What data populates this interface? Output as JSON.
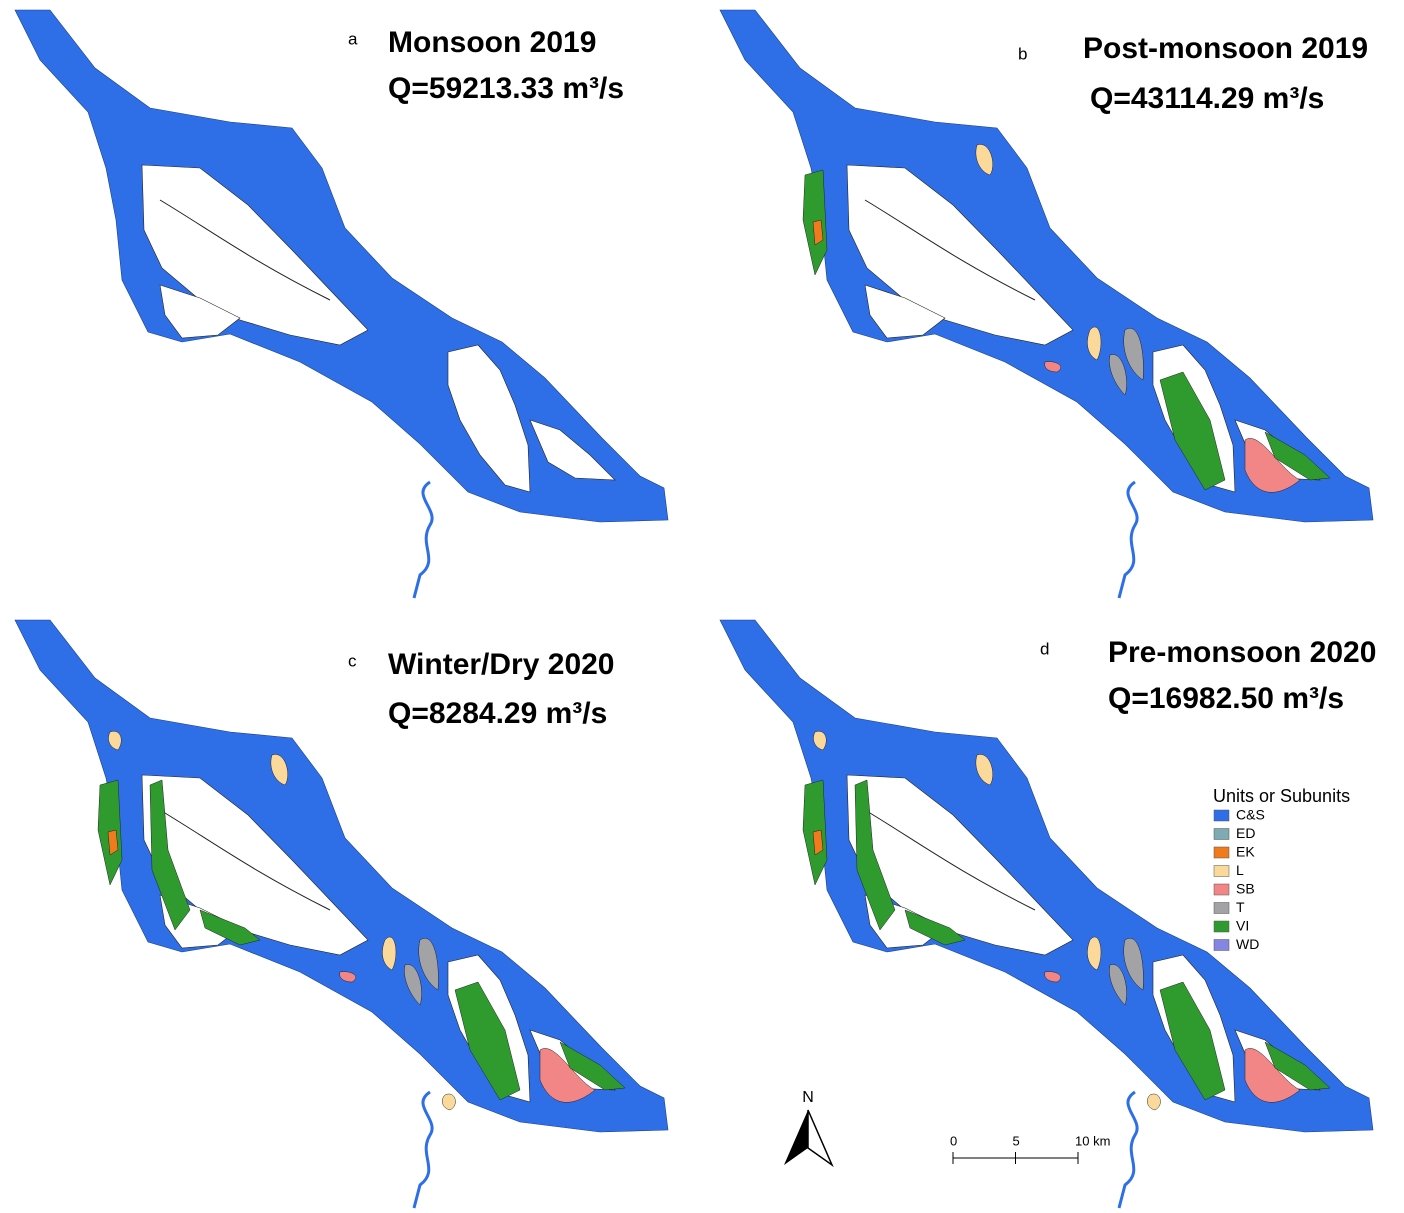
{
  "panels": [
    {
      "letter": "a",
      "title": "Monsoon 2019",
      "discharge": "Q=59213.33  m³/s"
    },
    {
      "letter": "b",
      "title": "Post-monsoon 2019",
      "discharge": "Q=43114.29   m³/s"
    },
    {
      "letter": "c",
      "title": "Winter/Dry 2020",
      "discharge": "Q=8284.29 m³/s"
    },
    {
      "letter": "d",
      "title": "Pre-monsoon 2020",
      "discharge": "Q=16982.50 m³/s"
    }
  ],
  "legend": {
    "title": "Units  or Subunits",
    "items": [
      {
        "name": "C&S",
        "color": "#2e6fe8"
      },
      {
        "name": "ED",
        "color": "#7eaab3"
      },
      {
        "name": "EK",
        "color": "#f07b1c"
      },
      {
        "name": "L",
        "color": "#fbd99b"
      },
      {
        "name": "SB",
        "color": "#f28585"
      },
      {
        "name": "T",
        "color": "#a3a3a6"
      },
      {
        "name": "VI",
        "color": "#2f9b2f"
      },
      {
        "name": "WD",
        "color": "#8585e3"
      }
    ]
  },
  "north_arrow": {
    "label": "N"
  },
  "scale_bar": {
    "ticks": [
      0,
      5,
      {
        "value": 10,
        "label": "10 km"
      }
    ]
  }
}
